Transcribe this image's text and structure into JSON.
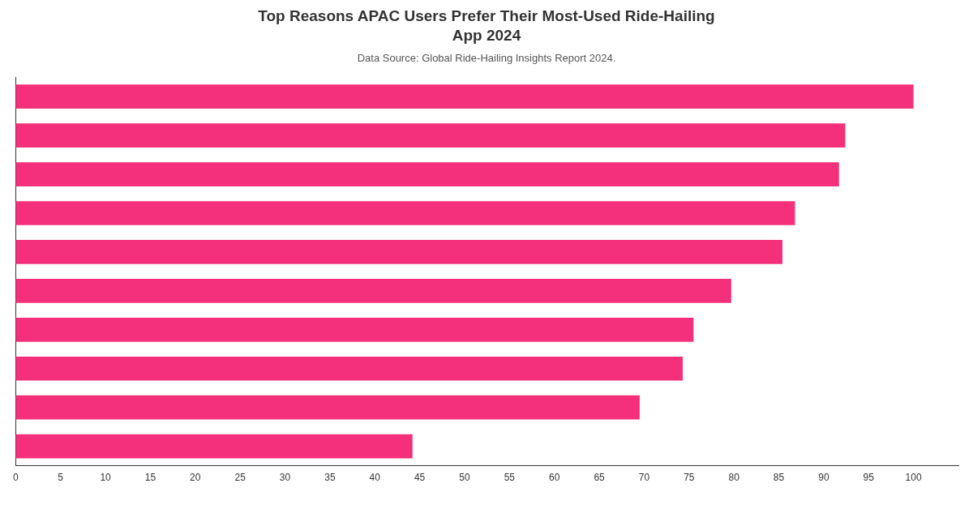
{
  "chart_data": {
    "type": "bar",
    "orientation": "horizontal",
    "title": "Top Reasons APAC Users Prefer Their Most-Used Ride-Hailing App 2024",
    "subtitle": "Data Source: Global Ride-Hailing Insights Report 2024.",
    "categories": [
      null,
      null,
      null,
      null,
      null,
      null,
      null,
      null,
      null,
      null
    ],
    "values": [
      100,
      92.4,
      91.7,
      86.8,
      85.4,
      79.7,
      75.5,
      74.3,
      69.5,
      44.2
    ],
    "color": "#f4307a",
    "xlim": [
      0,
      105
    ],
    "xticks": [
      0,
      5,
      10,
      15,
      20,
      25,
      30,
      35,
      40,
      45,
      50,
      55,
      60,
      65,
      70,
      75,
      80,
      85,
      90,
      95,
      100
    ],
    "grid": false,
    "legend": false
  }
}
